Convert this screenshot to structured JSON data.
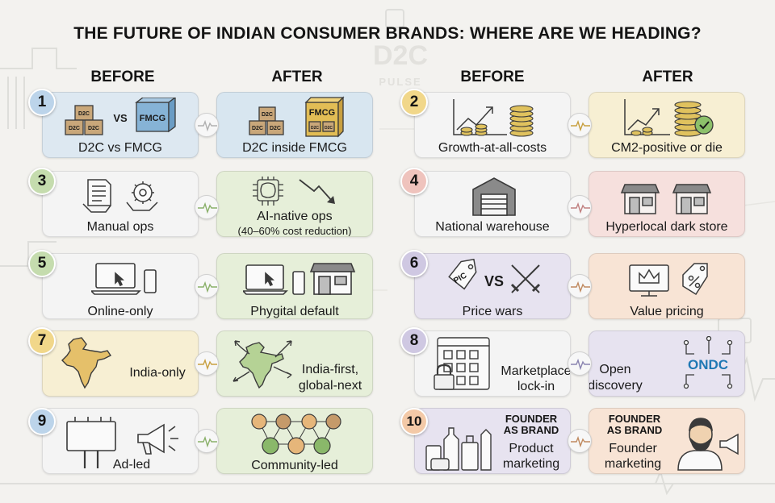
{
  "title": "THE FUTURE OF INDIAN CONSUMER BRANDS: WHERE ARE WE HEADING?",
  "watermark": {
    "brand": "D2C",
    "sub": "PULSE"
  },
  "headers": {
    "before_left": "BEFORE",
    "after_left": "AFTER",
    "before_right": "BEFORE",
    "after_right": "AFTER"
  },
  "colors": {
    "blue_card": "#dde8f1",
    "green_card": "#e6efd9",
    "yellow_card": "#f7efd3",
    "red_card": "#f6e0dd",
    "purple_card": "#e7e3f0",
    "orange_card": "#f8e4d5",
    "white_card": "#f4f4f4",
    "badge_blue": "#bcd4ea",
    "badge_yellow": "#f1d78a",
    "badge_green": "#c5dcae",
    "badge_red": "#efc3bd",
    "badge_purple": "#cfc8e2",
    "badge_orange": "#f3c9a7"
  },
  "items": [
    {
      "num": "1",
      "before": "D2C vs FMCG",
      "after": "D2C inside FMCG",
      "icon_before": {
        "d2c": "D2C",
        "vs": "VS",
        "fmcg": "FMCG"
      },
      "icon_after": {
        "d2c": "D2C",
        "fmcg": "FMCG"
      }
    },
    {
      "num": "2",
      "before": "Growth-at-all-costs",
      "after": "CM2-positive or die"
    },
    {
      "num": "3",
      "before": "Manual ops",
      "after_line1": "AI-native ops",
      "after_line2": "(40–60% cost reduction)"
    },
    {
      "num": "4",
      "before": "National warehouse",
      "after": "Hyperlocal dark store"
    },
    {
      "num": "5",
      "before": "Online-only",
      "after": "Phygital default"
    },
    {
      "num": "6",
      "before": "Price wars",
      "after": "Value pricing",
      "icon_before": {
        "tag": "PIC",
        "vs": "VS"
      }
    },
    {
      "num": "7",
      "before": "India-only",
      "after_line1": "India-first,",
      "after_line2": "global-next"
    },
    {
      "num": "8",
      "before_line1": "Marketplace",
      "before_line2": "lock-in",
      "after_line1": "Open",
      "after_line2": "discovery",
      "after_logo": "ONDC"
    },
    {
      "num": "9",
      "before": "Ad-led",
      "after": "Community-led"
    },
    {
      "num": "10",
      "heading_line1": "FOUNDER",
      "heading_line2": "AS BRAND",
      "before_line1": "Product",
      "before_line2": "marketing",
      "after_line1": "Founder",
      "after_line2": "marketing"
    }
  ],
  "icons": [
    "boxes-vs-fmcg-icon",
    "boxes-inside-fmcg-icon",
    "growth-chart-coins-icon",
    "chart-coins-check-icon",
    "document-hand-icon",
    "gear-hand-icon",
    "ai-chip-icon",
    "down-trend-arrow-icon",
    "warehouse-icon",
    "storefront-icon",
    "laptop-cursor-icon",
    "phone-icon",
    "price-tag-icon",
    "crossed-swords-icon",
    "crown-screen-icon",
    "percent-tag-icon",
    "india-map-icon",
    "india-map-arrows-icon",
    "app-grid-lock-icon",
    "ondc-logo-icon",
    "billboard-icon",
    "megaphone-icon",
    "community-network-icon",
    "product-bottles-icon",
    "founder-portrait-icon",
    "heartbeat-connector-icon"
  ]
}
